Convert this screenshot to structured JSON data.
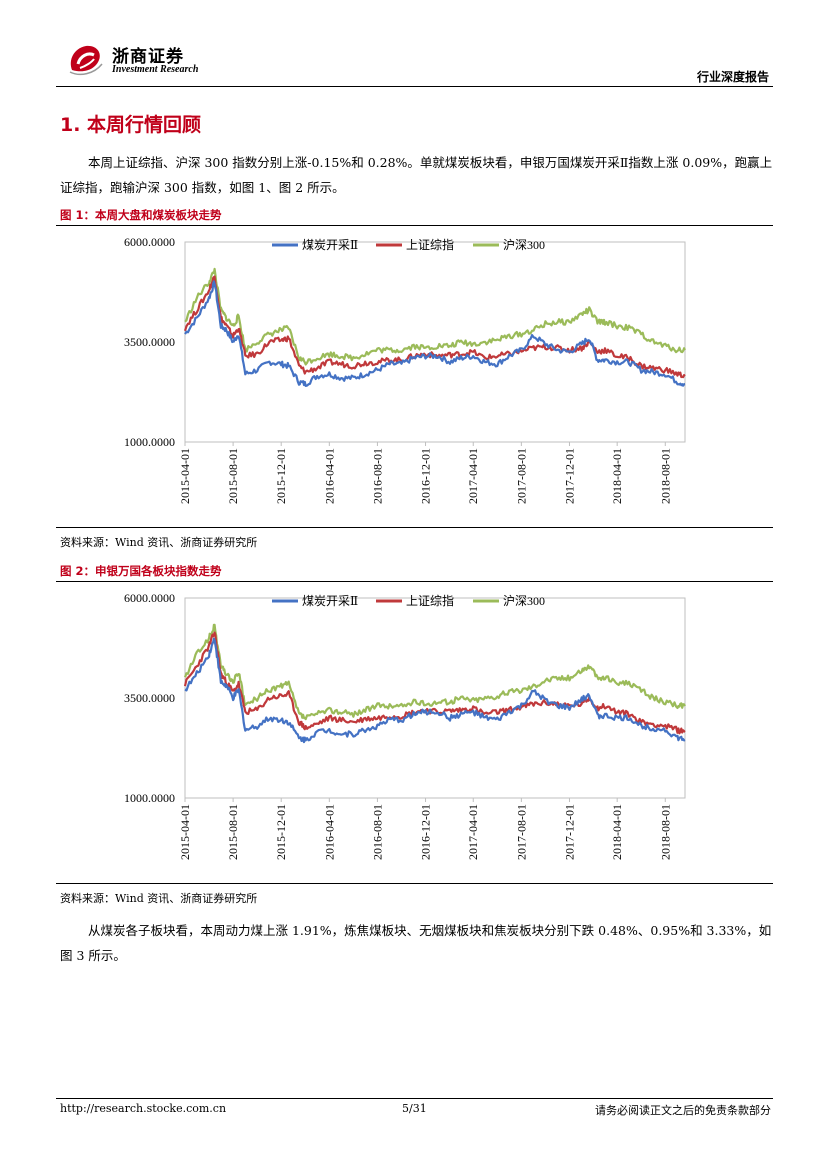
{
  "header": {
    "logo_cn": "浙商证券",
    "logo_en": "Investment Research",
    "doc_type": "行业深度报告"
  },
  "section": {
    "heading": "1. 本周行情回顾"
  },
  "paragraphs": {
    "p1": "本周上证综指、沪深 300 指数分别上涨-0.15%和 0.28%。单就煤炭板块看，申银万国煤炭开采Ⅱ指数上涨 0.09%，跑赢上证综指，跑输沪深 300 指数，如图 1、图 2 所示。",
    "p2": "从煤炭各子板块看，本周动力煤上涨 1.91%，炼焦煤板块、无烟煤板块和焦炭板块分别下跌 0.48%、0.95%和 3.33%，如图 3 所示。"
  },
  "figures": {
    "fig1_title": "图 1：本周大盘和煤炭板块走势",
    "fig2_title": "图 2：申银万国各板块指数走势",
    "source": "资料来源：Wind 资讯、浙商证券研究所"
  },
  "colors": {
    "coal": "#4472c4",
    "sh": "#c0393b",
    "hs300": "#9bbb59",
    "accent": "#c0001a"
  },
  "chart_data": [
    {
      "type": "line",
      "x": [
        "2015-04-01",
        "2015-05-01",
        "2015-06-01",
        "2015-06-15",
        "2015-07-01",
        "2015-07-15",
        "2015-08-01",
        "2015-08-15",
        "2015-09-01",
        "2015-10-01",
        "2015-11-01",
        "2015-12-01",
        "2015-12-20",
        "2016-01-15",
        "2016-02-01",
        "2016-03-01",
        "2016-04-01",
        "2016-05-01",
        "2016-06-01",
        "2016-07-01",
        "2016-08-01",
        "2016-09-01",
        "2016-10-01",
        "2016-11-01",
        "2016-12-01",
        "2017-01-01",
        "2017-02-01",
        "2017-03-01",
        "2017-04-01",
        "2017-05-01",
        "2017-06-01",
        "2017-07-01",
        "2017-08-01",
        "2017-09-01",
        "2017-10-01",
        "2017-11-01",
        "2017-12-01",
        "2018-01-01",
        "2018-01-20",
        "2018-02-10",
        "2018-03-01",
        "2018-04-01",
        "2018-05-01",
        "2018-06-01",
        "2018-07-01",
        "2018-08-01",
        "2018-09-01",
        "2018-09-20"
      ],
      "series": [
        {
          "name": "煤炭开采Ⅱ",
          "values": [
            3700,
            4100,
            4600,
            5000,
            3900,
            3800,
            3500,
            3700,
            2700,
            2800,
            3000,
            2950,
            2900,
            2500,
            2450,
            2650,
            2700,
            2600,
            2600,
            2700,
            2800,
            2950,
            2950,
            3100,
            3150,
            3150,
            3000,
            3100,
            3150,
            3000,
            2950,
            3150,
            3300,
            3650,
            3450,
            3300,
            3250,
            3450,
            3600,
            3050,
            3050,
            3000,
            3000,
            2800,
            2750,
            2700,
            2500,
            2450
          ]
        },
        {
          "name": "上证综指",
          "values": [
            3850,
            4300,
            4800,
            5150,
            4100,
            3900,
            3650,
            3850,
            3150,
            3200,
            3500,
            3550,
            3600,
            2900,
            2750,
            2850,
            3000,
            2950,
            2900,
            2980,
            3000,
            3050,
            3050,
            3150,
            3200,
            3150,
            3180,
            3200,
            3250,
            3100,
            3150,
            3200,
            3270,
            3350,
            3380,
            3350,
            3300,
            3350,
            3500,
            3250,
            3300,
            3150,
            3100,
            2900,
            2850,
            2800,
            2700,
            2650
          ]
        },
        {
          "name": "沪深300",
          "values": [
            4000,
            4600,
            5000,
            5300,
            4300,
            4100,
            3900,
            4150,
            3300,
            3500,
            3700,
            3800,
            3850,
            3100,
            3000,
            3100,
            3200,
            3150,
            3100,
            3200,
            3300,
            3300,
            3300,
            3400,
            3350,
            3400,
            3400,
            3500,
            3450,
            3500,
            3550,
            3650,
            3700,
            3800,
            3950,
            4000,
            4000,
            4200,
            4300,
            4000,
            4000,
            3900,
            3850,
            3700,
            3500,
            3400,
            3300,
            3300
          ]
        }
      ],
      "ylim": [
        1000,
        6000
      ],
      "ytick_labels": [
        "6000.0000",
        "3500.0000",
        "1000.0000"
      ],
      "xtick_labels": [
        "2015-04-01",
        "2015-08-01",
        "2015-12-01",
        "2016-04-01",
        "2016-08-01",
        "2016-12-01",
        "2017-04-01",
        "2017-08-01",
        "2017-12-01",
        "2018-04-01",
        "2018-08-01"
      ],
      "legend": "top-center",
      "grid": false
    },
    {
      "type": "line",
      "x": [
        "2015-04-01",
        "2015-05-01",
        "2015-06-01",
        "2015-06-15",
        "2015-07-01",
        "2015-07-15",
        "2015-08-01",
        "2015-08-15",
        "2015-09-01",
        "2015-10-01",
        "2015-11-01",
        "2015-12-01",
        "2015-12-20",
        "2016-01-15",
        "2016-02-01",
        "2016-03-01",
        "2016-04-01",
        "2016-05-01",
        "2016-06-01",
        "2016-07-01",
        "2016-08-01",
        "2016-09-01",
        "2016-10-01",
        "2016-11-01",
        "2016-12-01",
        "2017-01-01",
        "2017-02-01",
        "2017-03-01",
        "2017-04-01",
        "2017-05-01",
        "2017-06-01",
        "2017-07-01",
        "2017-08-01",
        "2017-09-01",
        "2017-10-01",
        "2017-11-01",
        "2017-12-01",
        "2018-01-01",
        "2018-01-20",
        "2018-02-10",
        "2018-03-01",
        "2018-04-01",
        "2018-05-01",
        "2018-06-01",
        "2018-07-01",
        "2018-08-01",
        "2018-09-01",
        "2018-09-20"
      ],
      "series": [
        {
          "name": "煤炭开采Ⅱ",
          "values": [
            3700,
            4100,
            4600,
            5000,
            3900,
            3800,
            3500,
            3700,
            2700,
            2800,
            3000,
            2950,
            2900,
            2500,
            2450,
            2650,
            2700,
            2600,
            2600,
            2700,
            2800,
            2950,
            2950,
            3100,
            3150,
            3150,
            3000,
            3100,
            3150,
            3000,
            2950,
            3150,
            3300,
            3650,
            3450,
            3300,
            3250,
            3450,
            3600,
            3050,
            3050,
            3000,
            3000,
            2800,
            2750,
            2700,
            2500,
            2450
          ]
        },
        {
          "name": "上证综指",
          "values": [
            3850,
            4300,
            4800,
            5150,
            4100,
            3900,
            3650,
            3850,
            3150,
            3200,
            3500,
            3550,
            3600,
            2900,
            2750,
            2850,
            3000,
            2950,
            2900,
            2980,
            3000,
            3050,
            3050,
            3150,
            3200,
            3150,
            3180,
            3200,
            3250,
            3100,
            3150,
            3200,
            3270,
            3350,
            3380,
            3350,
            3300,
            3350,
            3500,
            3250,
            3300,
            3150,
            3100,
            2900,
            2850,
            2800,
            2700,
            2650
          ]
        },
        {
          "name": "沪深300",
          "values": [
            4000,
            4600,
            5000,
            5300,
            4300,
            4100,
            3900,
            4150,
            3300,
            3500,
            3700,
            3800,
            3850,
            3100,
            3000,
            3100,
            3200,
            3150,
            3100,
            3200,
            3300,
            3300,
            3300,
            3400,
            3350,
            3400,
            3400,
            3500,
            3450,
            3500,
            3550,
            3650,
            3700,
            3800,
            3950,
            4000,
            4000,
            4200,
            4300,
            4000,
            4000,
            3900,
            3850,
            3700,
            3500,
            3400,
            3300,
            3300
          ]
        }
      ],
      "ylim": [
        1000,
        6000
      ],
      "ytick_labels": [
        "6000.0000",
        "3500.0000",
        "1000.0000"
      ],
      "xtick_labels": [
        "2015-04-01",
        "2015-08-01",
        "2015-12-01",
        "2016-04-01",
        "2016-08-01",
        "2016-12-01",
        "2017-04-01",
        "2017-08-01",
        "2017-12-01",
        "2018-04-01",
        "2018-08-01"
      ],
      "legend": "top-center",
      "grid": false
    }
  ],
  "footer": {
    "url": "http://research.stocke.com.cn",
    "page": "5/31",
    "disclaimer": "请务必阅读正文之后的免责条款部分"
  }
}
